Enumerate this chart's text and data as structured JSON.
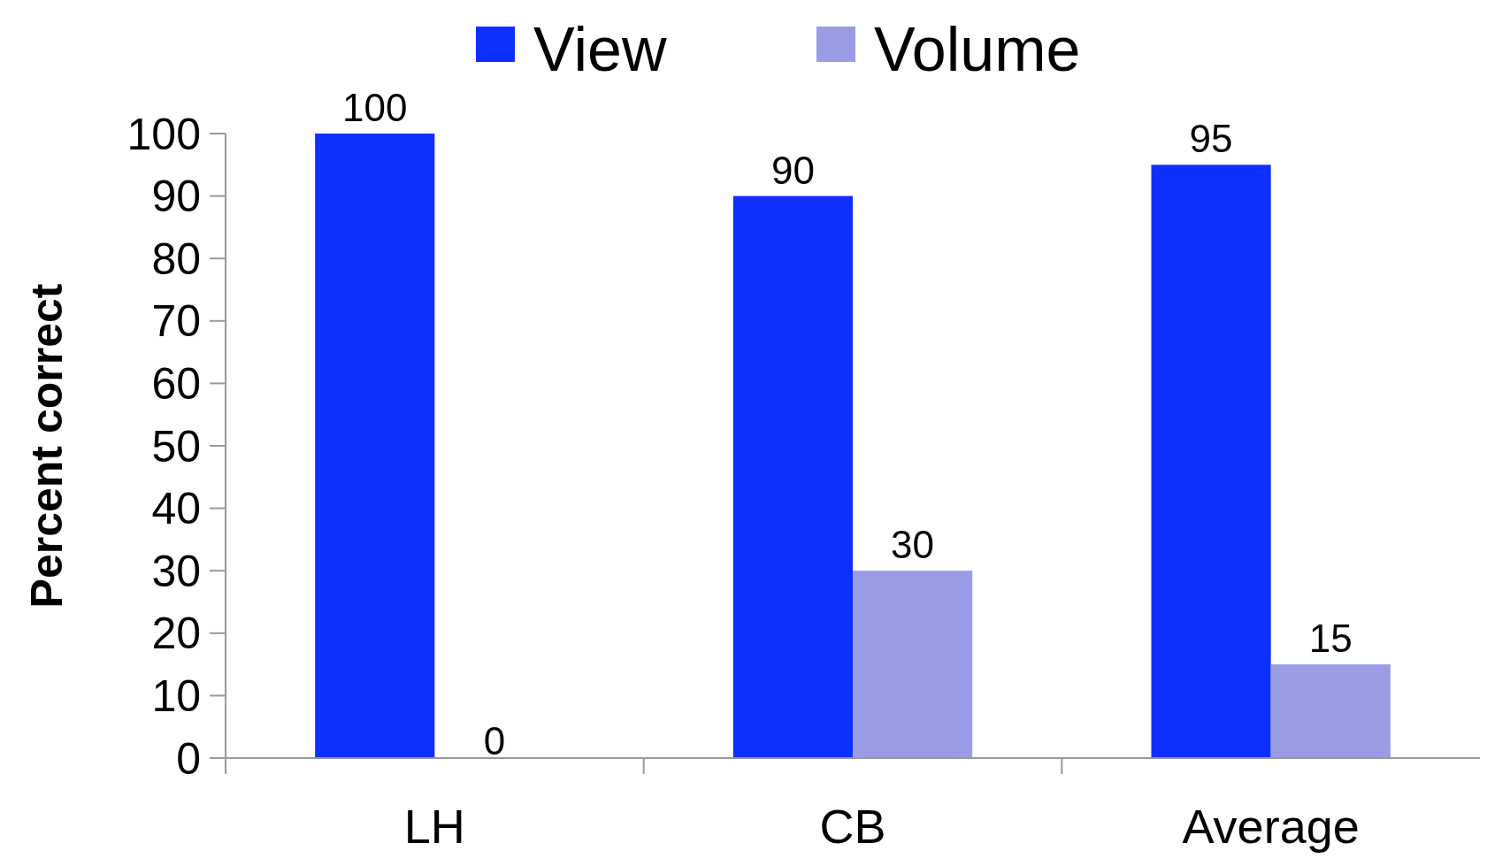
{
  "chart_data": {
    "type": "bar",
    "ylabel": "Percent correct",
    "categories": [
      "LH",
      "CB",
      "Average"
    ],
    "series": [
      {
        "name": "View",
        "color": "#0f2fff",
        "values": [
          100,
          90,
          95
        ]
      },
      {
        "name": "Volume",
        "color": "#9a9ce6",
        "values": [
          0,
          30,
          15
        ]
      }
    ],
    "ylim": [
      0,
      100
    ],
    "yticks": [
      0,
      10,
      20,
      30,
      40,
      50,
      60,
      70,
      80,
      90,
      100
    ],
    "data_labels": true,
    "legend": "top",
    "grid": false
  }
}
